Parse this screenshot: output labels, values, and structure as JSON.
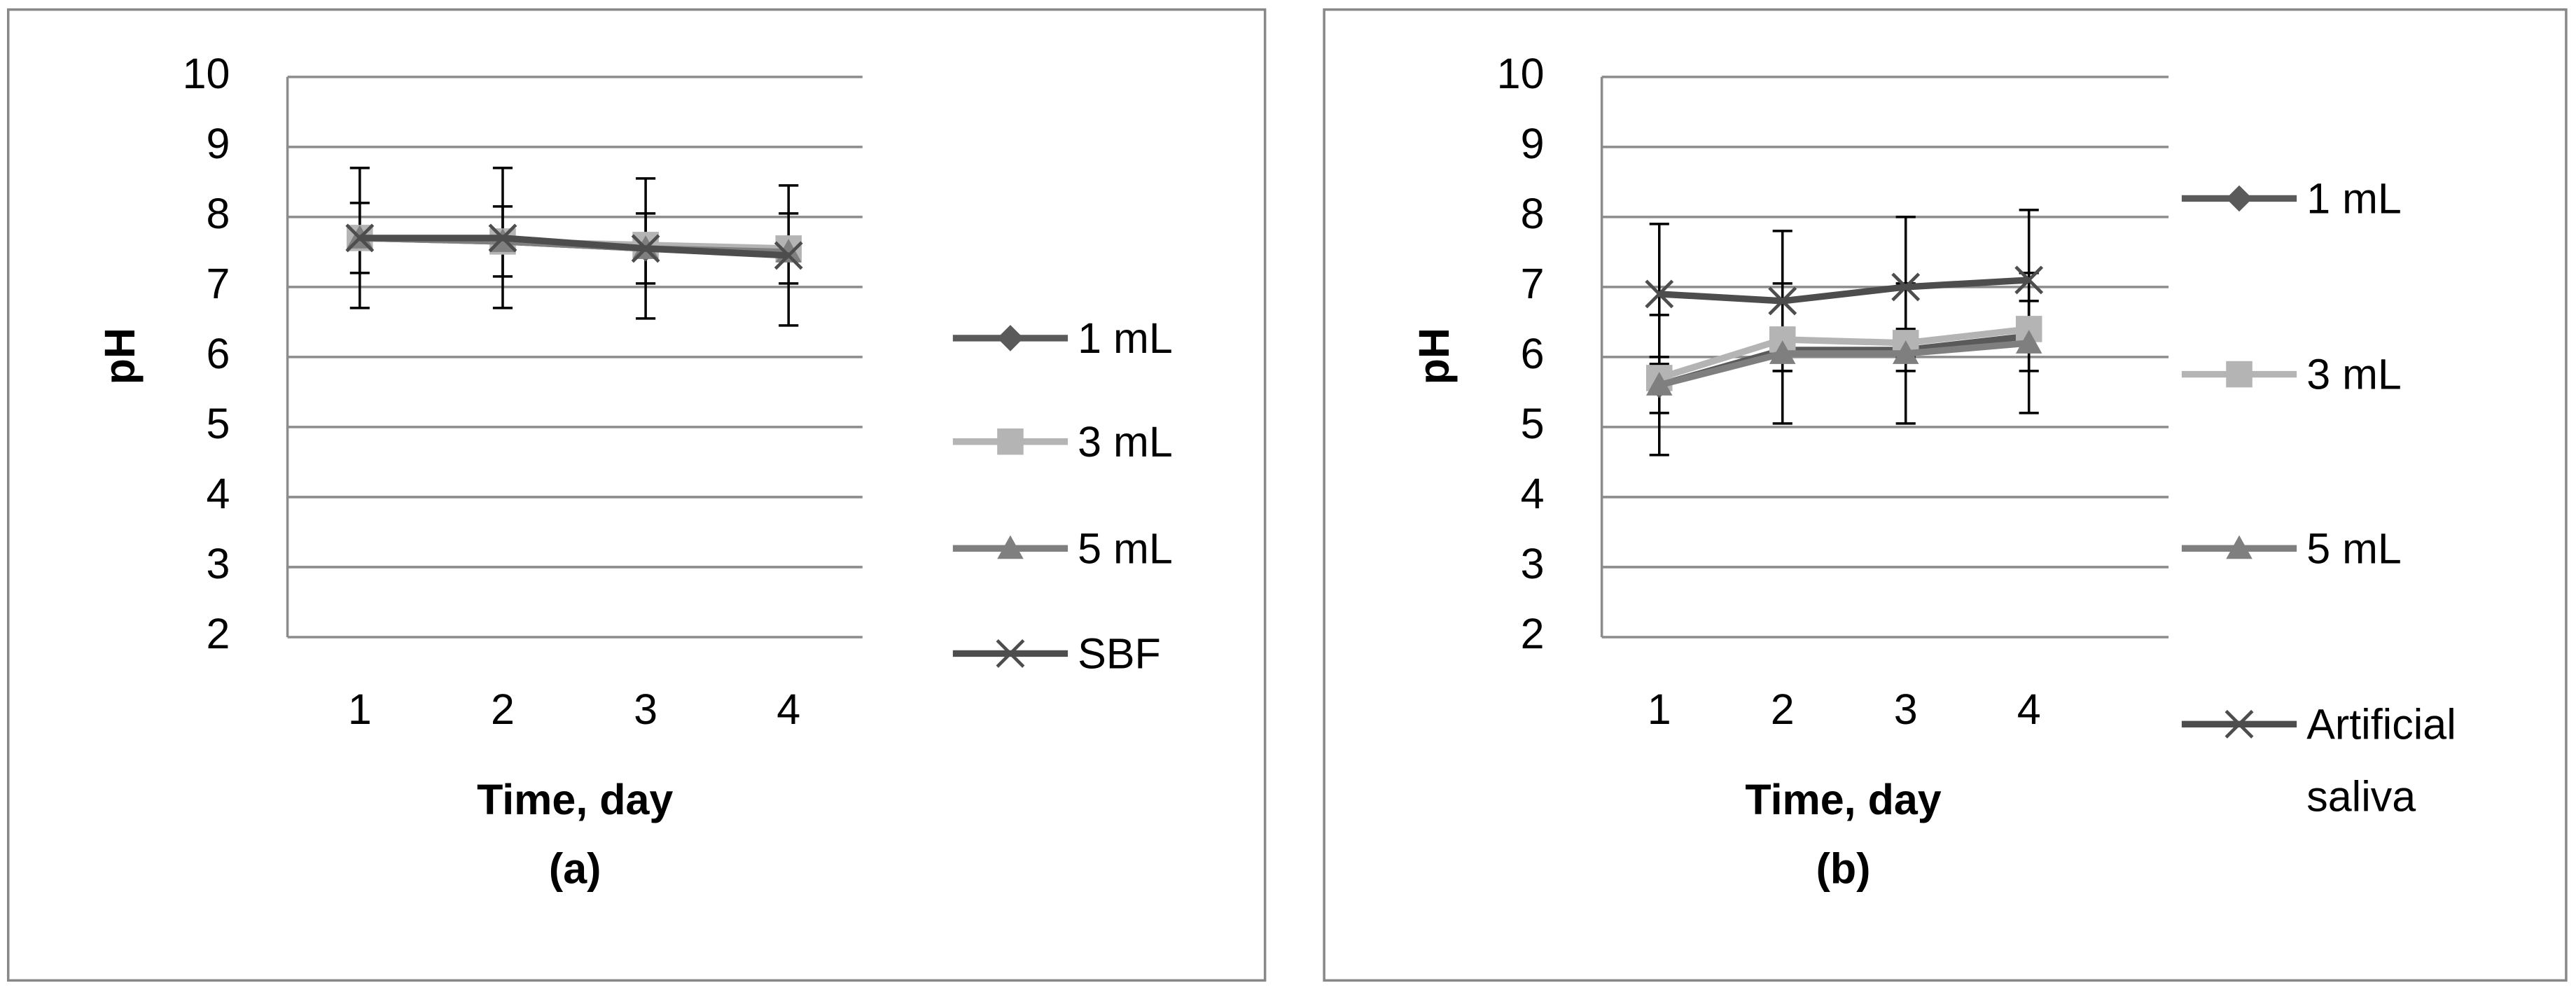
{
  "chart_data": [
    {
      "type": "line",
      "x_label": "Time, day",
      "y_label": "pH",
      "caption": "(a)",
      "categories": [
        "1",
        "2",
        "3",
        "4"
      ],
      "ylim": [
        2,
        10
      ],
      "yticks": [
        2,
        3,
        4,
        5,
        6,
        7,
        8,
        9,
        10
      ],
      "grid": true,
      "legend": "right",
      "series": [
        {
          "name": "1 mL",
          "color": "#5a5a5a",
          "marker": "diamond",
          "values": [
            7.7,
            7.65,
            7.55,
            7.55
          ],
          "errors": [
            0.5,
            0.5,
            0.5,
            0.5
          ]
        },
        {
          "name": "3 mL",
          "color": "#b4b4b4",
          "marker": "square",
          "values": [
            7.7,
            7.65,
            7.6,
            7.55
          ]
        },
        {
          "name": "5 mL",
          "color": "#7f7f7f",
          "marker": "triangle",
          "values": [
            7.7,
            7.65,
            7.55,
            7.5
          ]
        },
        {
          "name": "SBF",
          "color": "#4d4d4d",
          "marker": "x",
          "values": [
            7.7,
            7.7,
            7.55,
            7.45
          ],
          "errors": [
            1,
            1,
            1,
            1
          ]
        }
      ]
    },
    {
      "type": "line",
      "x_label": "Time, day",
      "y_label": "pH",
      "caption": "(b)",
      "categories": [
        "1",
        "2",
        "3",
        "4"
      ],
      "ylim": [
        2,
        10
      ],
      "yticks": [
        2,
        3,
        4,
        5,
        6,
        7,
        8,
        9,
        10
      ],
      "grid": true,
      "legend": "right",
      "series": [
        {
          "name": "1 mL",
          "color": "#5a5a5a",
          "marker": "diamond",
          "values": [
            5.6,
            6.1,
            6.1,
            6.3
          ],
          "errors": [
            0.4,
            0.3,
            0.3,
            0.5
          ]
        },
        {
          "name": "3 mL",
          "color": "#b4b4b4",
          "marker": "square",
          "values": [
            5.7,
            6.25,
            6.2,
            6.4
          ]
        },
        {
          "name": "5 mL",
          "color": "#7f7f7f",
          "marker": "triangle",
          "values": [
            5.6,
            6.05,
            6.05,
            6.2
          ],
          "errors": [
            1,
            1,
            1,
            1
          ]
        },
        {
          "name": "Artificial saliva",
          "color": "#4d4d4d",
          "marker": "x",
          "values": [
            6.9,
            6.8,
            7.0,
            7.1
          ],
          "errors": [
            1,
            1,
            1,
            1
          ]
        }
      ]
    }
  ]
}
